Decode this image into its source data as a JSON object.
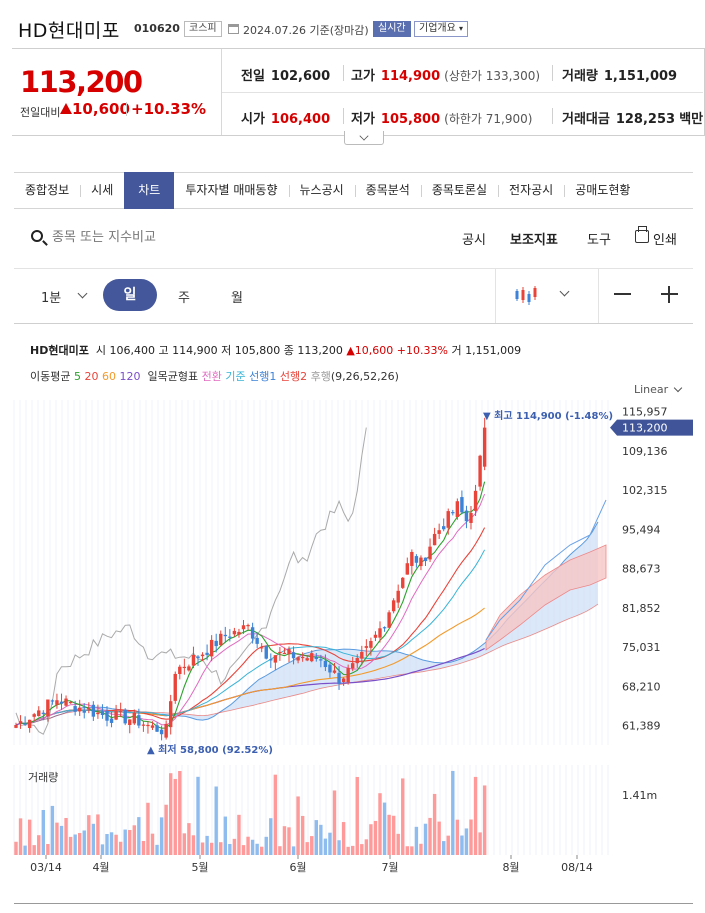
{
  "header": {
    "name": "HD현대미포",
    "code": "010620",
    "market": "코스피",
    "date": "2024.07.26 기준(장마감)",
    "live_badge": "실시간",
    "corp_badge": "기업개요"
  },
  "summary": {
    "price": "113,200",
    "change_label": "전일대비",
    "change_amount": "10,600",
    "change_pct": "+10.33%",
    "prev_close_label": "전일",
    "prev_close": "102,600",
    "high_label": "고가",
    "high": "114,900",
    "upper_limit": "(상한가 133,300)",
    "volume_label": "거래량",
    "volume": "1,151,009",
    "open_label": "시가",
    "open": "106,400",
    "low_label": "저가",
    "low": "105,800",
    "lower_limit": "(하한가 71,900)",
    "amount_label": "거래대금",
    "amount": "128,253",
    "amount_unit": "백만"
  },
  "tabs": [
    {
      "label": "종합정보"
    },
    {
      "label": "시세"
    },
    {
      "label": "차트",
      "active": true
    },
    {
      "label": "투자자별 매매동향"
    },
    {
      "label": "뉴스공시"
    },
    {
      "label": "종목분석"
    },
    {
      "label": "종목토론실"
    },
    {
      "label": "전자공시"
    },
    {
      "label": "공매도현황"
    }
  ],
  "search": {
    "placeholder": "종목 또는 지수비교"
  },
  "tools": {
    "disclosure": "공시",
    "indicator": "보조지표",
    "tools": "도구",
    "print": "인쇄"
  },
  "period": {
    "minute": "1분",
    "day": "일",
    "week": "주",
    "month": "월"
  },
  "chart_info": {
    "name": "HD현대미포",
    "open_label": "시",
    "open": "106,400",
    "high_label": "고",
    "high": "114,900",
    "low_label": "저",
    "low": "105,800",
    "close_label": "종",
    "close": "113,200",
    "change": "10,600",
    "change_pct": "+10.33%",
    "volume_label": "거",
    "volume": "1,151,009"
  },
  "indicators": {
    "ma_label": "이동평균",
    "ma": [
      {
        "label": "5",
        "color": "#2ca02c"
      },
      {
        "label": "20",
        "color": "#e8443a"
      },
      {
        "label": "60",
        "color": "#f39a2b"
      },
      {
        "label": "120",
        "color": "#7a4fc7"
      }
    ],
    "ichimoku_label": "일목균형표",
    "ichimoku": [
      {
        "label": "전환",
        "color": "#e06cc0"
      },
      {
        "label": "기준",
        "color": "#39b3d6"
      },
      {
        "label": "선행1",
        "color": "#3c82d6"
      },
      {
        "label": "선행2",
        "color": "#e8443a"
      },
      {
        "label": "후행",
        "color": "#999999"
      }
    ],
    "params": "(9,26,52,26)"
  },
  "scale_mode": "Linear",
  "chart_data": {
    "type": "candlestick",
    "y_ticks": [
      "115,957",
      "109,136",
      "102,315",
      "95,494",
      "88,673",
      "81,852",
      "75,031",
      "68,210",
      "61,389"
    ],
    "ylim": [
      58000,
      118000
    ],
    "x_labels": [
      "03/14",
      "4월",
      "5월",
      "6월",
      "7월",
      "8월",
      "08/14"
    ],
    "current_price": "113,200",
    "max_annotation": "최고 114,900 (-1.48%)",
    "min_annotation": "최저 58,800 (92.52%)",
    "volume_label": "거래량",
    "volume_tick": "1.41m",
    "up_color": "#e8443a",
    "down_color": "#3c82d6"
  }
}
